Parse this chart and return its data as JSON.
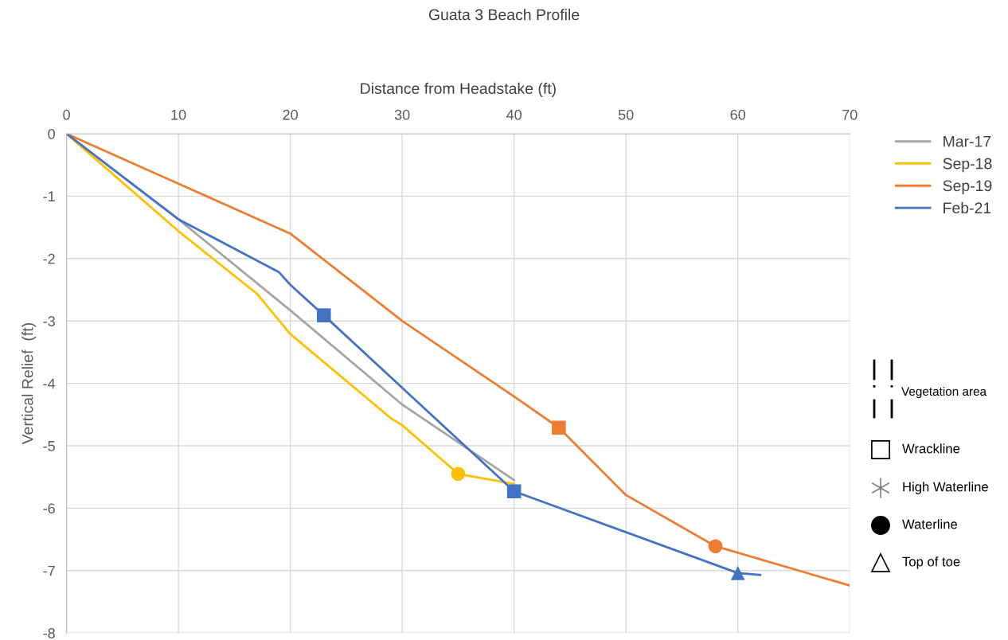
{
  "chart_data": {
    "type": "line",
    "title": "Guata 3 Beach Profile",
    "xlabel": "Distance from Headstake (ft)",
    "ylabel": "Vertical Relief  (ft)",
    "xlim": [
      0,
      70
    ],
    "xticks": [
      0,
      10,
      20,
      30,
      40,
      50,
      60,
      70
    ],
    "ylim": [
      -8,
      0
    ],
    "yticks": [
      -8,
      -7,
      -6,
      -5,
      -4,
      -3,
      -2,
      -1,
      0
    ],
    "grid": true,
    "legend": "right",
    "annotations": [
      "Vegetation area",
      "Wrackline",
      "High Waterline",
      "Waterline",
      "Top of toe"
    ],
    "series": [
      {
        "name": "Mar-17",
        "color": "#a5a5a5",
        "x": [
          0,
          10,
          20,
          30,
          40
        ],
        "values": [
          0,
          -1.37,
          -2.83,
          -4.34,
          -5.55
        ]
      },
      {
        "name": "Sep-18",
        "color": "#ffc000",
        "x": [
          0,
          10,
          17,
          20,
          29,
          30,
          35,
          40
        ],
        "values": [
          0,
          -1.56,
          -2.56,
          -3.21,
          -4.56,
          -4.67,
          -5.45,
          -5.61
        ]
      },
      {
        "name": "Sep-19",
        "color": "#ed7d31",
        "x": [
          0,
          20,
          30,
          40,
          44,
          50,
          58,
          70
        ],
        "values": [
          0,
          -1.6,
          -3.0,
          -4.21,
          -4.71,
          -5.79,
          -6.61,
          -7.24
        ]
      },
      {
        "name": "Feb-21",
        "color": "#4472c4",
        "x": [
          0,
          10,
          19,
          20,
          23,
          40,
          60,
          62
        ],
        "values": [
          0,
          -1.37,
          -2.22,
          -2.42,
          -2.91,
          -5.73,
          -7.04,
          -7.07
        ]
      },
      {
        "type": "scatter",
        "marker": "square",
        "x": [
          23,
          40,
          44
        ],
        "values": [
          -2.91,
          -5.73,
          -4.71
        ],
        "colors": [
          "#4472c4",
          "#4472c4",
          "#ed7d31"
        ]
      },
      {
        "type": "scatter",
        "marker": "circle",
        "x": [
          35,
          58
        ],
        "values": [
          -5.45,
          -6.61
        ],
        "colors": [
          "#ffc000",
          "#ed7d31"
        ]
      },
      {
        "type": "scatter",
        "marker": "triangle",
        "x": [
          60
        ],
        "values": [
          -7.04
        ],
        "colors": [
          "#4472c4"
        ]
      }
    ]
  }
}
